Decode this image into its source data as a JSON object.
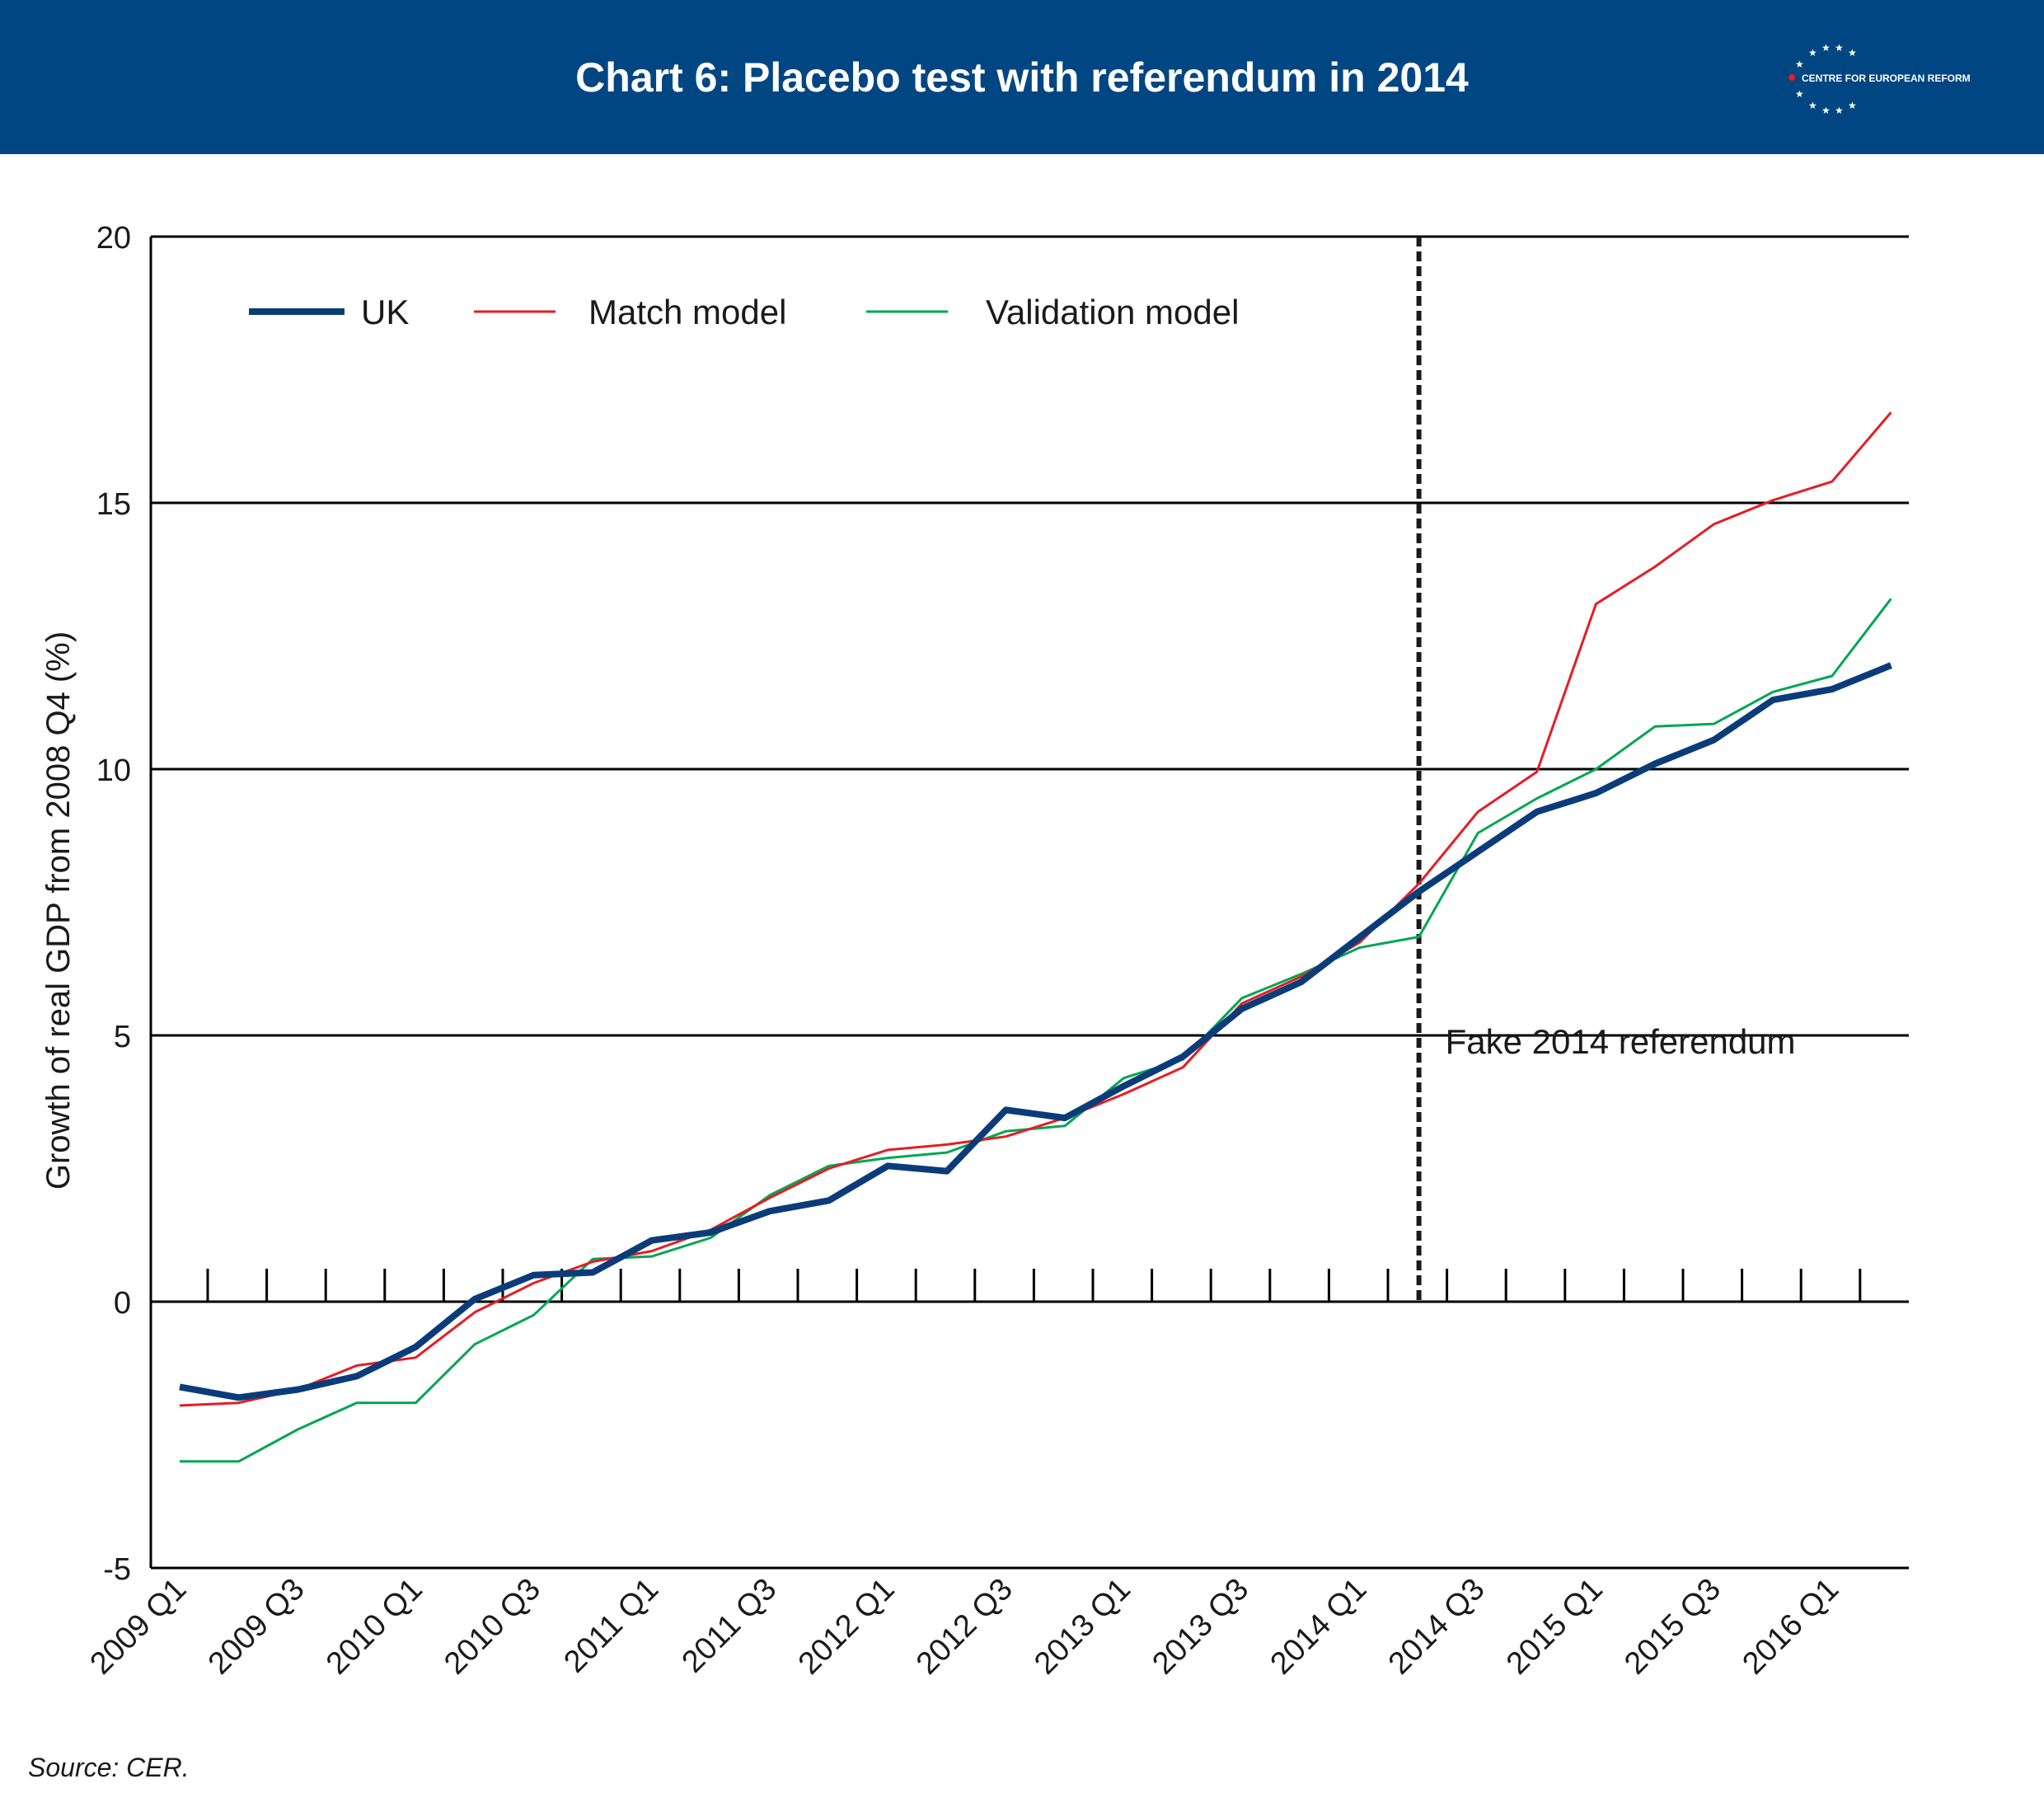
{
  "header": {
    "title": "Chart 6: Placebo test with referendum in 2014",
    "logo_text": "CENTRE FOR EUROPEAN REFORM",
    "background_color": "#004682"
  },
  "source": "Source: CER.",
  "chart_data": {
    "type": "line",
    "ylabel": "Growth of real GDP from 2008 Q4 (%)",
    "ylim": [
      -5,
      20
    ],
    "yticks": [
      -5,
      0,
      5,
      10,
      15,
      20
    ],
    "grid": "horizontal",
    "legend_position": "top-left",
    "x": [
      "2009 Q1",
      "2009 Q2",
      "2009 Q3",
      "2009 Q4",
      "2010 Q1",
      "2010 Q2",
      "2010 Q3",
      "2010 Q4",
      "2011 Q1",
      "2011 Q2",
      "2011 Q3",
      "2011 Q4",
      "2012 Q1",
      "2012 Q2",
      "2012 Q3",
      "2012 Q4",
      "2013 Q1",
      "2013 Q2",
      "2013 Q3",
      "2013 Q4",
      "2014 Q1",
      "2014 Q2",
      "2014 Q3",
      "2014 Q4",
      "2015 Q1",
      "2015 Q2",
      "2015 Q3",
      "2015 Q4",
      "2016 Q1",
      "2016 Q2"
    ],
    "xtick_labels": [
      "2009 Q1",
      "2009 Q3",
      "2010 Q1",
      "2010 Q3",
      "2011 Q1",
      "2011 Q3",
      "2012 Q1",
      "2012 Q3",
      "2013 Q1",
      "2013 Q3",
      "2014 Q1",
      "2014 Q3",
      "2015 Q1",
      "2015 Q3",
      "2016 Q1"
    ],
    "series": [
      {
        "name": "UK",
        "color": "#0b3c7a",
        "values": [
          -1.6,
          -1.8,
          -1.65,
          -1.4,
          -0.85,
          0.05,
          0.5,
          0.55,
          1.15,
          1.3,
          1.7,
          1.9,
          2.55,
          2.45,
          3.6,
          3.45,
          4.05,
          4.6,
          5.5,
          6.0,
          6.85,
          7.7,
          8.45,
          9.2,
          9.55,
          10.1,
          10.55,
          11.3,
          11.5,
          11.95
        ]
      },
      {
        "name": "Match model",
        "color": "#e31e24",
        "values": [
          -1.95,
          -1.9,
          -1.65,
          -1.2,
          -1.05,
          -0.2,
          0.35,
          0.75,
          0.95,
          1.35,
          1.95,
          2.5,
          2.85,
          2.95,
          3.1,
          3.45,
          3.9,
          4.4,
          5.6,
          6.1,
          6.75,
          7.85,
          9.2,
          9.95,
          13.1,
          13.8,
          14.6,
          15.05,
          15.4,
          16.7
        ]
      },
      {
        "name": "Validation model",
        "color": "#00a651",
        "values": [
          -3.0,
          -3.0,
          -2.4,
          -1.9,
          -1.9,
          -0.8,
          -0.25,
          0.8,
          0.85,
          1.2,
          2.0,
          2.55,
          2.7,
          2.8,
          3.2,
          3.3,
          4.2,
          4.55,
          5.7,
          6.15,
          6.65,
          6.85,
          8.8,
          9.45,
          10.0,
          10.8,
          10.85,
          11.45,
          11.75,
          13.2
        ]
      }
    ],
    "annotation": {
      "text": "Fake 2014 referendum",
      "x": "2014 Q2"
    }
  }
}
